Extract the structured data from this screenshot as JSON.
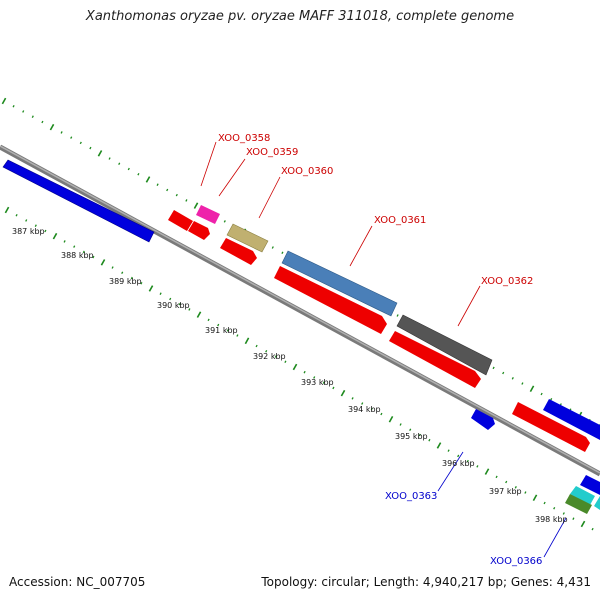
{
  "title": "Xanthomonas oryzae pv. oryzae MAFF 311018, complete genome",
  "footer": {
    "accession": "Accession: NC_007705",
    "topology": "Topology: circular; Length: 4,940,217 bp; Genes: 4,431"
  },
  "colors": {
    "backbone": "#8f8f8f",
    "tick": "#1e8a1e",
    "label_forward": "#cc0000",
    "label_reverse": "#0000cc"
  },
  "kbp_labels": [
    "387 kbp",
    "388 kbp",
    "389 kbp",
    "390 kbp",
    "391 kbp",
    "392 kbp",
    "393 kbp",
    "394 kbp",
    "395 kbp",
    "396 kbp",
    "397 kbp",
    "398 kbp"
  ],
  "gene_labels": {
    "xoo_0358": "XOO_0358",
    "xoo_0359": "XOO_0359",
    "xoo_0360": "XOO_0360",
    "xoo_0361": "XOO_0361",
    "xoo_0362": "XOO_0362",
    "xoo_0363": "XOO_0363",
    "xoo_0366": "XOO_0366"
  }
}
